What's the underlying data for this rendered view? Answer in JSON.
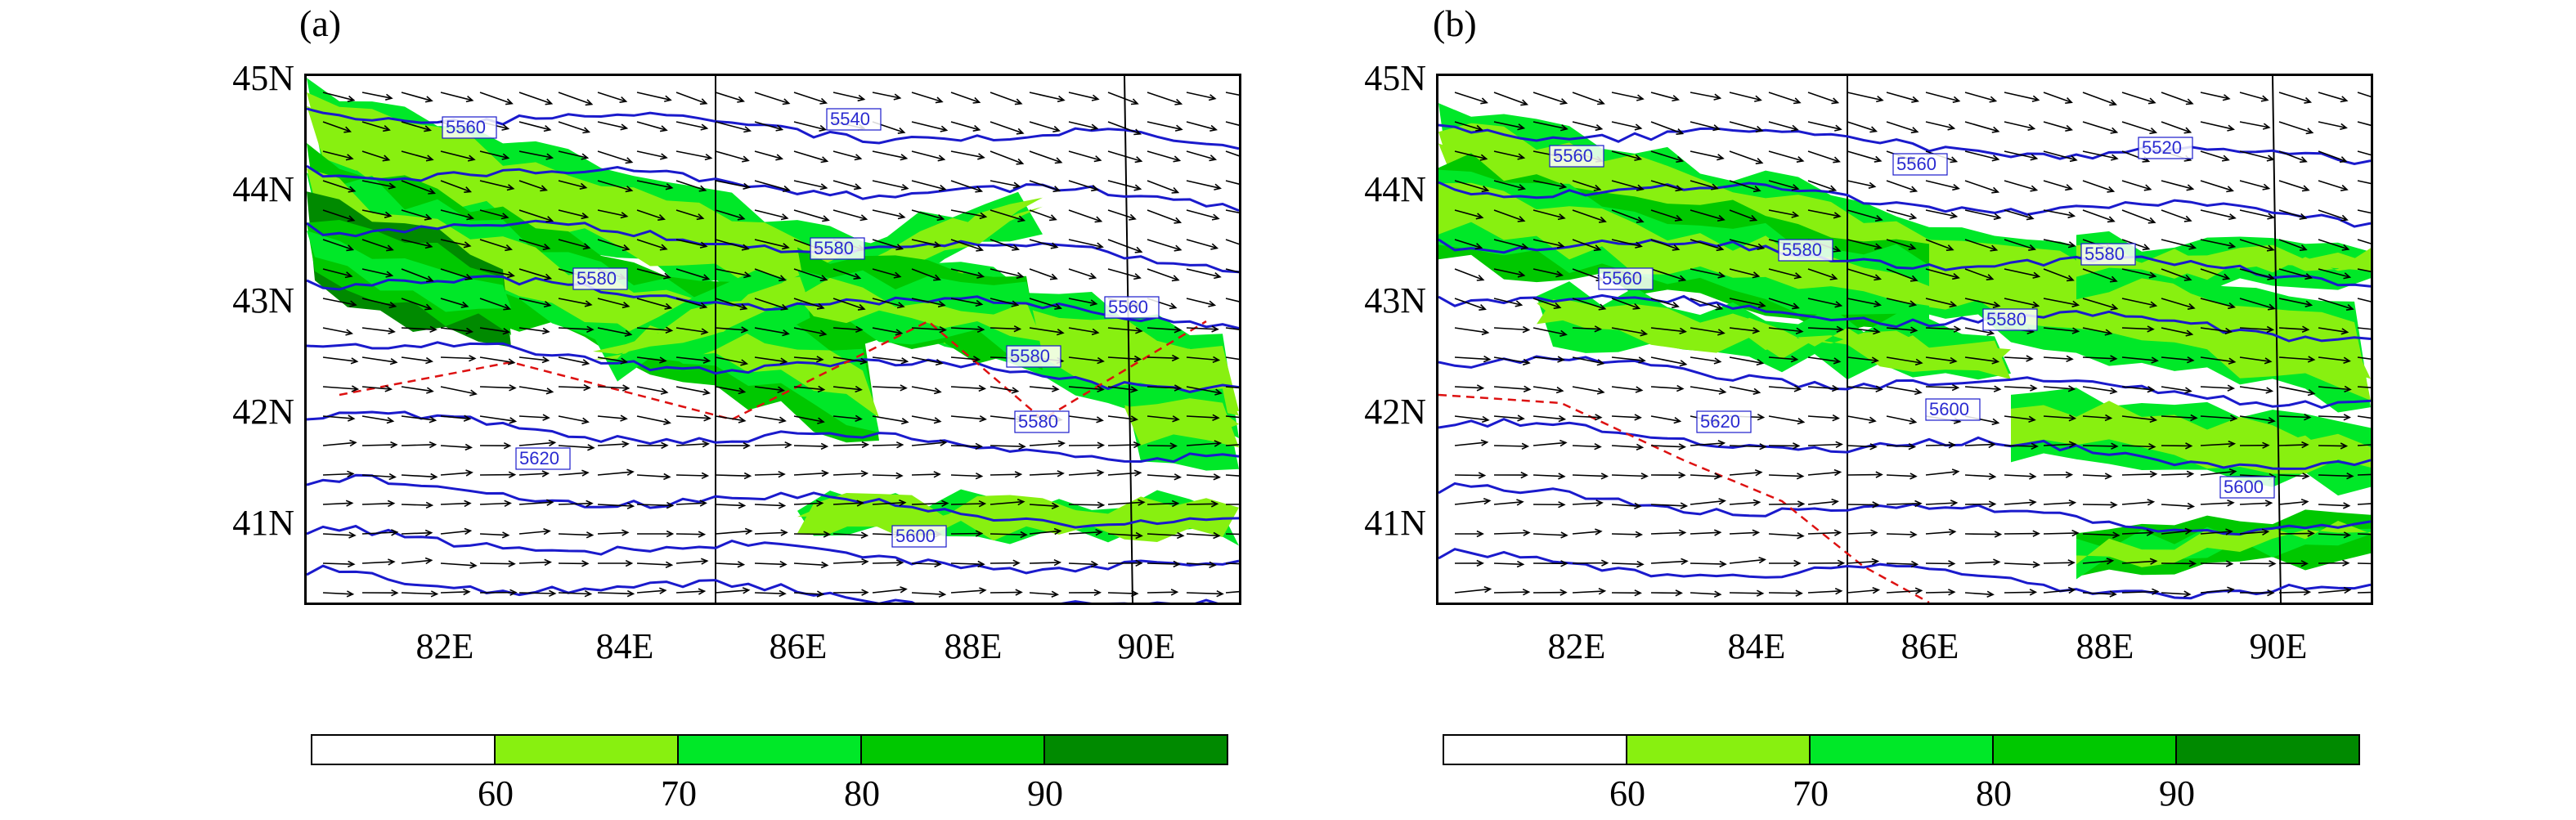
{
  "panels": [
    {
      "label": "(a)",
      "lat_labels": [
        "45N",
        "44N",
        "43N",
        "42N",
        "41N"
      ],
      "lon_labels": [
        "82E",
        "84E",
        "86E",
        "88E",
        "90E"
      ],
      "contour_labels": [
        "5560",
        "5540",
        "5580",
        "5580",
        "5560",
        "5580",
        "5580",
        "5600",
        "5620"
      ]
    },
    {
      "label": "(b)",
      "lat_labels": [
        "45N",
        "44N",
        "43N",
        "42N",
        "41N"
      ],
      "lon_labels": [
        "82E",
        "84E",
        "86E",
        "88E",
        "90E"
      ],
      "contour_labels": [
        "5560",
        "5560",
        "5520",
        "5580",
        "5580",
        "5560",
        "5580",
        "5620",
        "5600",
        "5600"
      ]
    }
  ],
  "colorbar": {
    "labels": [
      "60",
      "70",
      "80",
      "90"
    ],
    "colors": [
      "#ffffff",
      "#88f010",
      "#00e828",
      "#00c800",
      "#008a00"
    ]
  },
  "styles": {
    "vector_color": "#000000",
    "contour_color": "#1a1acc",
    "dashed_contour_color": "#dd1111",
    "border_color": "#000000"
  }
}
